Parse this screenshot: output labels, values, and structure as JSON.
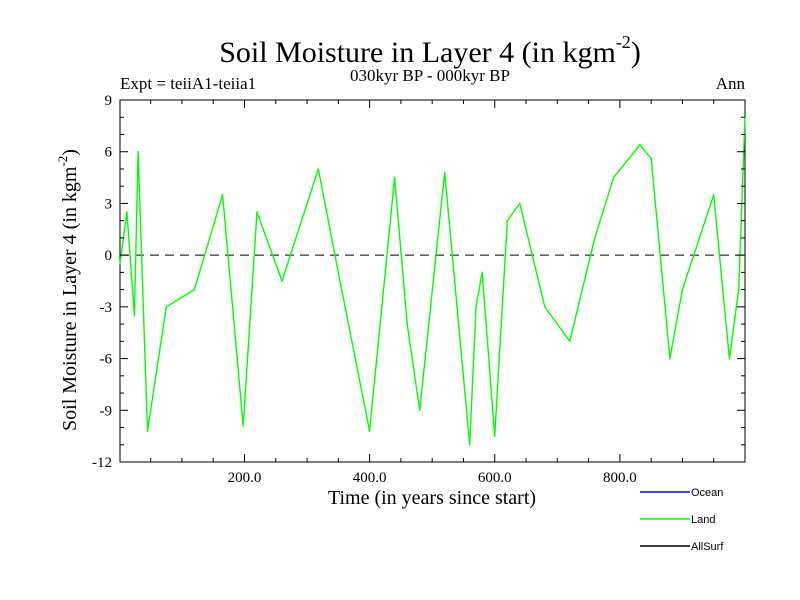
{
  "chart_data": {
    "type": "line",
    "title": "Soil Moisture in Layer 4 (in kgm",
    "title_sup": "-2",
    "title_end": ")",
    "subtitle": "030kyr BP - 000kyr BP",
    "experiment_label": "Expt = teiiA1-teiia1",
    "period_label": "Ann",
    "xlabel": "Time (in years since start)",
    "ylabel": "Soil Moisture in Layer 4 (in kgm",
    "ylabel_sup": "-2",
    "ylabel_end": ")",
    "xlim": [
      1,
      1000
    ],
    "ylim": [
      -12,
      9
    ],
    "x_ticks": [
      200,
      400,
      600,
      800
    ],
    "x_tick_labels": [
      "200.0",
      "400.0",
      "600.0",
      "800.0"
    ],
    "y_ticks": [
      -12,
      -9,
      -6,
      -3,
      0,
      3,
      6,
      9
    ],
    "y_tick_labels": [
      "-12",
      "-9",
      "-6",
      "-3",
      "0",
      "3",
      "6",
      "9"
    ],
    "zero_line": true,
    "grid": false,
    "legend_position": "bottom-right",
    "series": [
      {
        "name": "Ocean",
        "color": "#0000ff",
        "x": [],
        "values": []
      },
      {
        "name": "Land",
        "color": "#00ff00",
        "x": [
          1,
          12,
          24,
          30,
          45,
          75,
          120,
          165,
          198,
          220,
          260,
          318,
          350,
          400,
          440,
          460,
          480,
          520,
          560,
          570,
          580,
          600,
          620,
          640,
          680,
          720,
          760,
          790,
          832,
          850,
          880,
          900,
          950,
          975,
          990,
          1000
        ],
        "values": [
          -0.5,
          2.5,
          -3.5,
          6.0,
          -10.2,
          -3.0,
          -2.0,
          3.5,
          -9.9,
          2.5,
          -1.5,
          5.0,
          -1.0,
          -10.2,
          4.5,
          -4.0,
          -9.0,
          4.8,
          -11.0,
          -3.0,
          -1.0,
          -10.5,
          2.0,
          3.0,
          -3.0,
          -5.0,
          1.0,
          4.5,
          6.4,
          5.6,
          -6.0,
          -2.0,
          3.5,
          -6.0,
          -2.0,
          8.0
        ]
      },
      {
        "name": "AllSurf",
        "color": "#000000",
        "x": [],
        "values": []
      }
    ]
  }
}
